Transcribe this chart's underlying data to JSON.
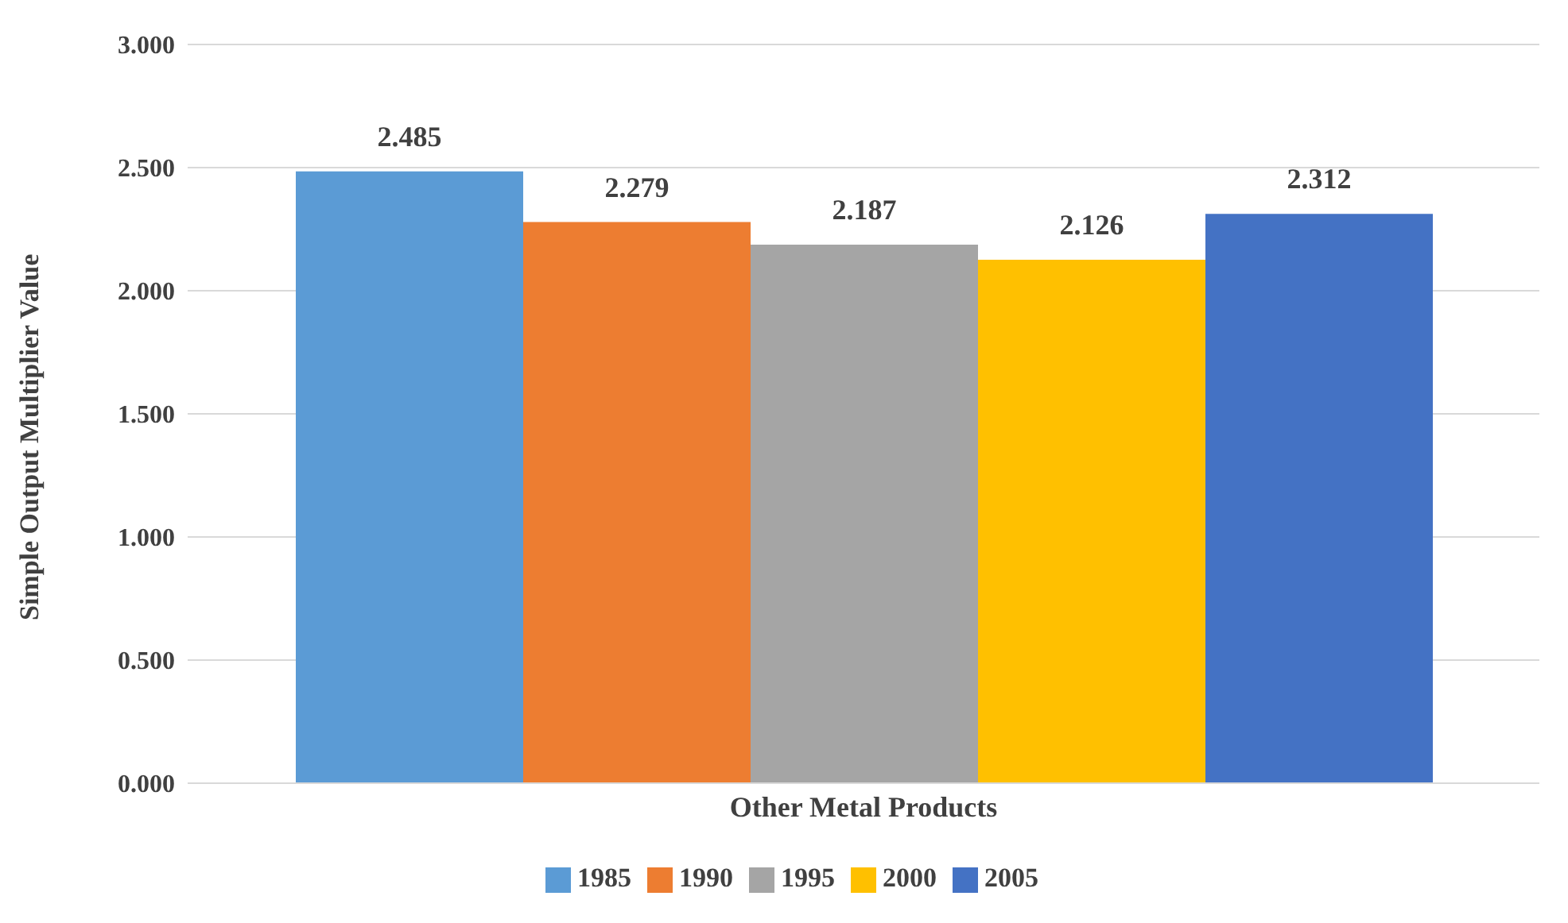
{
  "chart_data": {
    "type": "bar",
    "ylabel": "Simple Output Multiplier Value",
    "categories": [
      "Other Metal Products"
    ],
    "series": [
      {
        "name": "1985",
        "color": "#5b9bd5",
        "values": [
          2.485
        ]
      },
      {
        "name": "1990",
        "color": "#ed7d31",
        "values": [
          2.279
        ]
      },
      {
        "name": "1995",
        "color": "#a5a5a5",
        "values": [
          2.187
        ]
      },
      {
        "name": "2000",
        "color": "#ffc000",
        "values": [
          2.126
        ]
      },
      {
        "name": "2005",
        "color": "#4472c4",
        "values": [
          2.312
        ]
      }
    ],
    "ylim": [
      0,
      3
    ],
    "yticks": [
      {
        "value": 0,
        "label": "0.000"
      },
      {
        "value": 0.5,
        "label": "0.500"
      },
      {
        "value": 1,
        "label": "1.000"
      },
      {
        "value": 1.5,
        "label": "1.500"
      },
      {
        "value": 2,
        "label": "2.000"
      },
      {
        "value": 2.5,
        "label": "2.500"
      },
      {
        "value": 3,
        "label": "3.000"
      }
    ],
    "grid": "y",
    "legend": "bottom",
    "data_labels": true
  }
}
